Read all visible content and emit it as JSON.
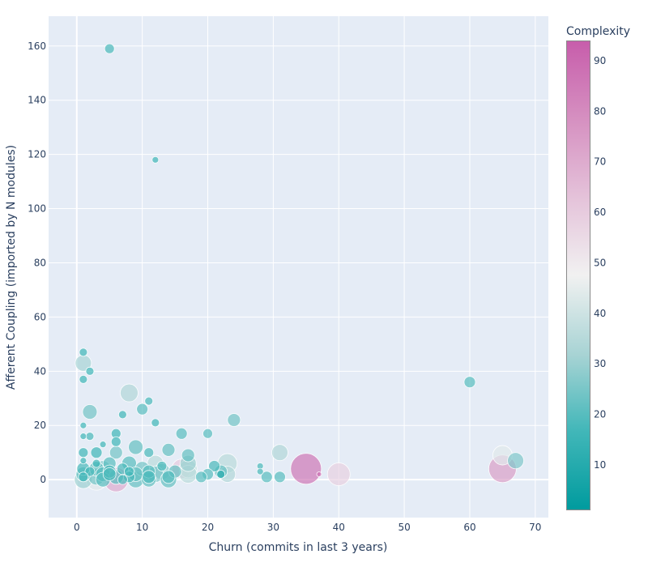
{
  "chart_data": {
    "type": "scatter",
    "subtype": "bubble",
    "title": "",
    "xlabel": "Churn (commits in last 3 years)",
    "ylabel": "Afferent Coupling (imported by N modules)",
    "xlim": [
      -4.3,
      72
    ],
    "ylim": [
      -14,
      171
    ],
    "x_ticks": [
      0,
      10,
      20,
      30,
      40,
      50,
      60,
      70
    ],
    "y_ticks": [
      0,
      20,
      40,
      60,
      80,
      100,
      120,
      140,
      160
    ],
    "grid": true,
    "legend": "none",
    "colorbar": {
      "title": "Complexity",
      "ticks": [
        10,
        20,
        30,
        40,
        50,
        60,
        70,
        80,
        90
      ],
      "range": [
        1,
        94
      ],
      "colorscale": [
        [
          0.0,
          "#009B9E"
        ],
        [
          0.17,
          "#42B7B9"
        ],
        [
          0.33,
          "#A7D3D4"
        ],
        [
          0.5,
          "#F1F1F1"
        ],
        [
          0.67,
          "#E4C1D9"
        ],
        [
          0.83,
          "#D691C1"
        ],
        [
          1.0,
          "#C75DAB"
        ]
      ]
    },
    "points": [
      {
        "x": 5,
        "y": 159,
        "c": 18,
        "s": 6
      },
      {
        "x": 12,
        "y": 118,
        "c": 16,
        "s": 4
      },
      {
        "x": 1,
        "y": 47,
        "c": 16,
        "s": 5
      },
      {
        "x": 1,
        "y": 43,
        "c": 32,
        "s": 10
      },
      {
        "x": 2,
        "y": 40,
        "c": 16,
        "s": 5
      },
      {
        "x": 1,
        "y": 37,
        "c": 16,
        "s": 5
      },
      {
        "x": 8,
        "y": 32,
        "c": 34,
        "s": 11
      },
      {
        "x": 11,
        "y": 29,
        "c": 18,
        "s": 5
      },
      {
        "x": 10,
        "y": 26,
        "c": 20,
        "s": 7
      },
      {
        "x": 2,
        "y": 25,
        "c": 24,
        "s": 9
      },
      {
        "x": 7,
        "y": 24,
        "c": 16,
        "s": 5
      },
      {
        "x": 12,
        "y": 21,
        "c": 16,
        "s": 5
      },
      {
        "x": 24,
        "y": 22,
        "c": 24,
        "s": 8
      },
      {
        "x": 60,
        "y": 36,
        "c": 20,
        "s": 7
      },
      {
        "x": 1,
        "y": 20,
        "c": 16,
        "s": 4
      },
      {
        "x": 1,
        "y": 16,
        "c": 16,
        "s": 4
      },
      {
        "x": 2,
        "y": 16,
        "c": 18,
        "s": 5
      },
      {
        "x": 6,
        "y": 17,
        "c": 16,
        "s": 6
      },
      {
        "x": 6,
        "y": 14,
        "c": 16,
        "s": 6
      },
      {
        "x": 16,
        "y": 17,
        "c": 20,
        "s": 7
      },
      {
        "x": 20,
        "y": 17,
        "c": 20,
        "s": 6
      },
      {
        "x": 4,
        "y": 13,
        "c": 16,
        "s": 4
      },
      {
        "x": 9,
        "y": 12,
        "c": 22,
        "s": 9
      },
      {
        "x": 14,
        "y": 11,
        "c": 22,
        "s": 8
      },
      {
        "x": 31,
        "y": 10,
        "c": 34,
        "s": 10
      },
      {
        "x": 1,
        "y": 10,
        "c": 16,
        "s": 6
      },
      {
        "x": 3,
        "y": 10,
        "c": 16,
        "s": 7
      },
      {
        "x": 6,
        "y": 10,
        "c": 24,
        "s": 8
      },
      {
        "x": 11,
        "y": 10,
        "c": 18,
        "s": 6
      },
      {
        "x": 17,
        "y": 9,
        "c": 22,
        "s": 8
      },
      {
        "x": 65,
        "y": 9,
        "c": 44,
        "s": 12
      },
      {
        "x": 67,
        "y": 7,
        "c": 26,
        "s": 10
      },
      {
        "x": 1,
        "y": 7,
        "c": 16,
        "s": 4
      },
      {
        "x": 3,
        "y": 6,
        "c": 16,
        "s": 5
      },
      {
        "x": 5,
        "y": 6,
        "c": 20,
        "s": 8
      },
      {
        "x": 8,
        "y": 6,
        "c": 20,
        "s": 9
      },
      {
        "x": 12,
        "y": 6,
        "c": 36,
        "s": 10
      },
      {
        "x": 17,
        "y": 6,
        "c": 30,
        "s": 10
      },
      {
        "x": 23,
        "y": 6,
        "c": 36,
        "s": 12
      },
      {
        "x": 13,
        "y": 5,
        "c": 18,
        "s": 6
      },
      {
        "x": 21,
        "y": 5,
        "c": 18,
        "s": 7
      },
      {
        "x": 28,
        "y": 5,
        "c": 18,
        "s": 4
      },
      {
        "x": 1,
        "y": 4,
        "c": 18,
        "s": 8
      },
      {
        "x": 3,
        "y": 4,
        "c": 22,
        "s": 9
      },
      {
        "x": 4,
        "y": 4,
        "c": 26,
        "s": 10
      },
      {
        "x": 7,
        "y": 4,
        "c": 18,
        "s": 7
      },
      {
        "x": 10,
        "y": 4,
        "c": 24,
        "s": 9
      },
      {
        "x": 16,
        "y": 4,
        "c": 60,
        "s": 12
      },
      {
        "x": 17,
        "y": 4,
        "c": 36,
        "s": 11
      },
      {
        "x": 35,
        "y": 4,
        "c": 86,
        "s": 19
      },
      {
        "x": 65,
        "y": 4,
        "c": 74,
        "s": 17
      },
      {
        "x": 28,
        "y": 3,
        "c": 18,
        "s": 4
      },
      {
        "x": 2,
        "y": 3,
        "c": 18,
        "s": 6
      },
      {
        "x": 5,
        "y": 3,
        "c": 20,
        "s": 8
      },
      {
        "x": 8,
        "y": 3,
        "c": 16,
        "s": 6
      },
      {
        "x": 11,
        "y": 3,
        "c": 20,
        "s": 8
      },
      {
        "x": 13,
        "y": 3,
        "c": 28,
        "s": 10
      },
      {
        "x": 15,
        "y": 3,
        "c": 22,
        "s": 8
      },
      {
        "x": 22,
        "y": 3,
        "c": 22,
        "s": 8
      },
      {
        "x": 1,
        "y": 2,
        "c": 22,
        "s": 9
      },
      {
        "x": 4,
        "y": 2,
        "c": 20,
        "s": 9
      },
      {
        "x": 5,
        "y": 2,
        "c": 18,
        "s": 8
      },
      {
        "x": 9,
        "y": 2,
        "c": 22,
        "s": 9
      },
      {
        "x": 12,
        "y": 2,
        "c": 26,
        "s": 10
      },
      {
        "x": 17,
        "y": 2,
        "c": 36,
        "s": 11
      },
      {
        "x": 20,
        "y": 2,
        "c": 20,
        "s": 7
      },
      {
        "x": 22,
        "y": 2,
        "c": 10,
        "s": 5
      },
      {
        "x": 23,
        "y": 2,
        "c": 34,
        "s": 10
      },
      {
        "x": 37,
        "y": 2,
        "c": 88,
        "s": 3
      },
      {
        "x": 40,
        "y": 2,
        "c": 58,
        "s": 14
      },
      {
        "x": 1,
        "y": 1,
        "c": 16,
        "s": 6
      },
      {
        "x": 3,
        "y": 1,
        "c": 24,
        "s": 10
      },
      {
        "x": 6,
        "y": 1,
        "c": 20,
        "s": 9
      },
      {
        "x": 8,
        "y": 1,
        "c": 18,
        "s": 7
      },
      {
        "x": 11,
        "y": 1,
        "c": 18,
        "s": 8
      },
      {
        "x": 14,
        "y": 1,
        "c": 20,
        "s": 8
      },
      {
        "x": 19,
        "y": 1,
        "c": 20,
        "s": 7
      },
      {
        "x": 29,
        "y": 1,
        "c": 20,
        "s": 7
      },
      {
        "x": 31,
        "y": 1,
        "c": 20,
        "s": 7
      },
      {
        "x": 1,
        "y": 0,
        "c": 30,
        "s": 11
      },
      {
        "x": 3,
        "y": 0,
        "c": 44,
        "s": 13
      },
      {
        "x": 4,
        "y": 0,
        "c": 20,
        "s": 9
      },
      {
        "x": 6,
        "y": 0,
        "c": 70,
        "s": 15
      },
      {
        "x": 9,
        "y": 0,
        "c": 22,
        "s": 10
      },
      {
        "x": 11,
        "y": 0,
        "c": 22,
        "s": 9
      },
      {
        "x": 14,
        "y": 0,
        "c": 22,
        "s": 10
      },
      {
        "x": 7,
        "y": 0,
        "c": 18,
        "s": 6
      }
    ]
  }
}
